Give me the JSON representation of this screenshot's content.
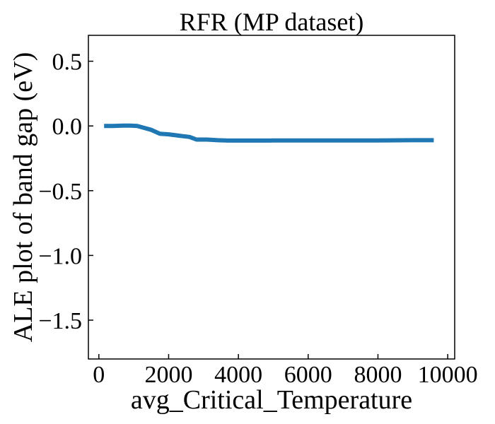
{
  "chart_data": {
    "type": "line",
    "title": "RFR (MP dataset)",
    "xlabel": "avg_Critical_Temperature",
    "ylabel": "ALE plot of band gap (eV)",
    "xlim": [
      -300,
      10200
    ],
    "ylim": [
      -1.8,
      0.7
    ],
    "x_ticks": [
      0,
      2000,
      4000,
      6000,
      8000,
      10000
    ],
    "x_tick_labels": [
      "0",
      "2000",
      "4000",
      "6000",
      "8000",
      "10000"
    ],
    "y_ticks": [
      0.5,
      0.0,
      -0.5,
      -1.0,
      -1.5
    ],
    "y_tick_labels": [
      "0.5",
      "0.0",
      "−0.5",
      "−1.0",
      "−1.5"
    ],
    "grid": false,
    "series": [
      {
        "color": "#1f77b4",
        "x": [
          150,
          400,
          700,
          900,
          1100,
          1300,
          1500,
          1750,
          2000,
          2300,
          2600,
          2800,
          3100,
          3400,
          3700,
          4000,
          4500,
          5000,
          6000,
          7000,
          8000,
          9000,
          9600
        ],
        "y": [
          0.0,
          0.0,
          0.003,
          0.003,
          0.0,
          -0.015,
          -0.03,
          -0.06,
          -0.065,
          -0.075,
          -0.085,
          -0.105,
          -0.105,
          -0.11,
          -0.113,
          -0.113,
          -0.113,
          -0.112,
          -0.112,
          -0.112,
          -0.112,
          -0.11,
          -0.11
        ]
      }
    ]
  }
}
